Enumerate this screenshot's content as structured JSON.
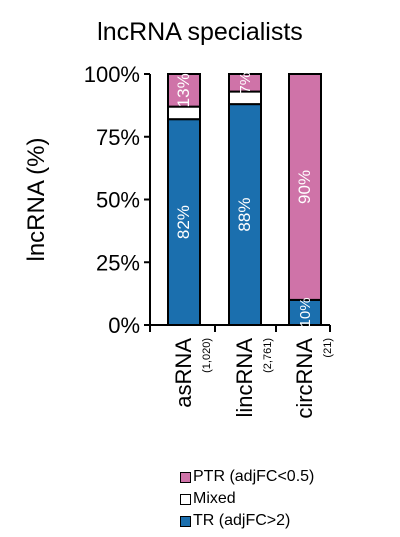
{
  "chart_data": {
    "type": "bar",
    "stacked": true,
    "title": "lncRNA specialists",
    "ylabel": "lncRNA (%)",
    "xlabel": "",
    "ylim": [
      0,
      100
    ],
    "yticks": [
      "0%",
      "25%",
      "50%",
      "75%",
      "100%"
    ],
    "ytick_values": [
      0,
      25,
      50,
      75,
      100
    ],
    "categories": [
      "asRNA",
      "lincRNA",
      "circRNA"
    ],
    "category_counts": [
      "(1,020)",
      "(2,761)",
      "(21)"
    ],
    "series": [
      {
        "name": "TR (adjFC>2)",
        "values": [
          82,
          88,
          10
        ],
        "color": "#1b6fae",
        "labels": [
          "82%",
          "88%",
          "10%"
        ]
      },
      {
        "name": "Mixed",
        "values": [
          5,
          5,
          0
        ],
        "color": "#ffffff",
        "labels": [
          "",
          "",
          ""
        ]
      },
      {
        "name": "PTR (adjFC<0.5)",
        "values": [
          13,
          7,
          90
        ],
        "color": "#cf73a8",
        "labels": [
          "13%",
          "7%",
          "90%"
        ]
      }
    ],
    "legend": [
      "PTR (adjFC<0.5)",
      "Mixed",
      "TR (adjFC>2)"
    ],
    "legend_colors": [
      "#cf73a8",
      "#ffffff",
      "#1b6fae"
    ],
    "legend_position": "bottom",
    "grid": false
  }
}
